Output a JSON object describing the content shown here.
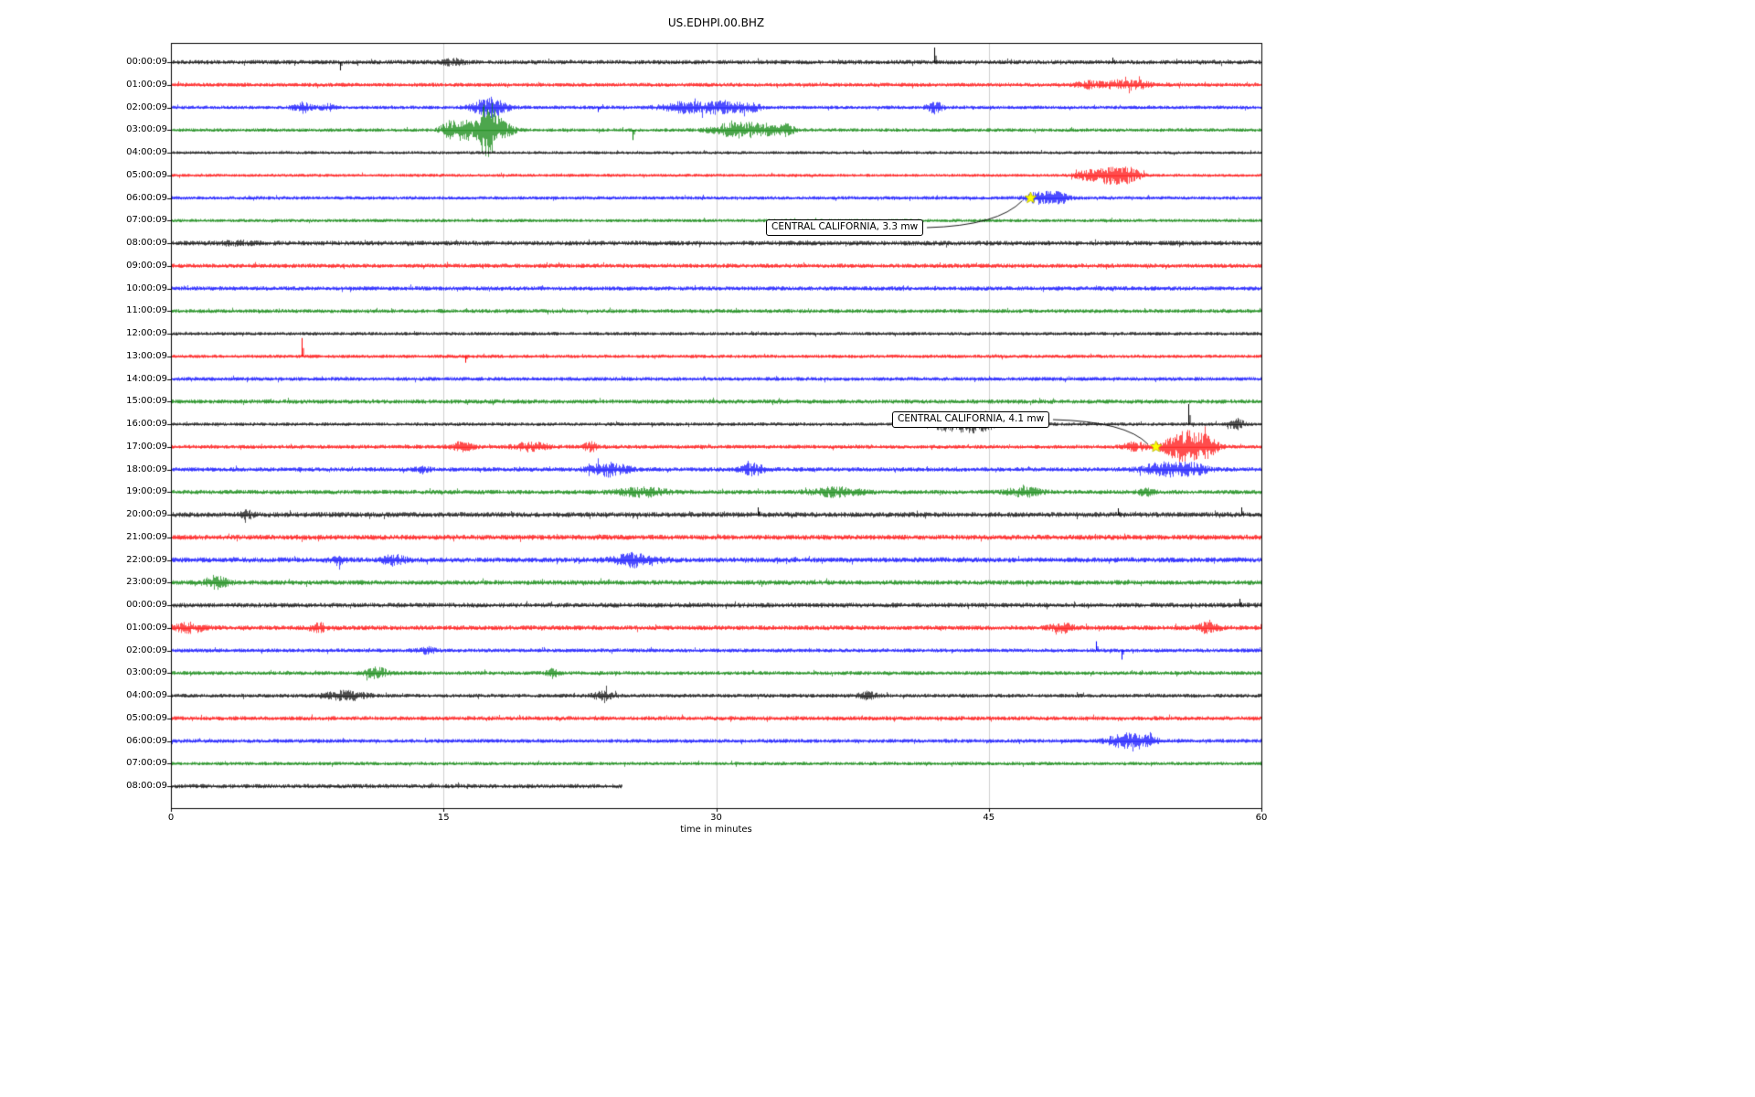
{
  "title": "US.EDHPI.00.BHZ",
  "chart_data": {
    "type": "line",
    "subtype": "seismogram-dayplot",
    "title": "US.EDHPI.00.BHZ",
    "station": "US.EDHPI.00.BHZ",
    "xlabel": "time in minutes",
    "xlim": [
      0,
      60
    ],
    "x_ticks": [
      "0",
      "15",
      "30",
      "45",
      "60"
    ],
    "grid": true,
    "grid_color": "#cfcfcf",
    "color_cycle": [
      "#000000",
      "#ff0000",
      "#0000ff",
      "#008000"
    ],
    "rows": [
      {
        "label": "00:00:09",
        "color": "#000000",
        "base": 2.2,
        "bursts": [
          [
            15.5,
            0.6,
            2.5
          ]
        ],
        "spikes": [
          [
            42.0,
            16
          ],
          [
            9.3,
            -9
          ],
          [
            51.8,
            5
          ]
        ]
      },
      {
        "label": "01:00:09",
        "color": "#ff0000",
        "base": 2.0,
        "bursts": [
          [
            50.5,
            0.7,
            3
          ],
          [
            52.2,
            0.8,
            4
          ],
          [
            53.4,
            0.5,
            3
          ]
        ],
        "spikes": []
      },
      {
        "label": "02:00:09",
        "color": "#0000ff",
        "base": 1.8,
        "bursts": [
          [
            7.2,
            0.5,
            5
          ],
          [
            8.6,
            0.4,
            3
          ],
          [
            17.5,
            0.9,
            9
          ],
          [
            28.4,
            1.4,
            5
          ],
          [
            30.3,
            0.8,
            6
          ],
          [
            31.8,
            0.7,
            4
          ],
          [
            42.0,
            0.4,
            6
          ]
        ],
        "spikes": [
          [
            23.5,
            -5
          ]
        ]
      },
      {
        "label": "03:00:09",
        "color": "#008000",
        "base": 1.8,
        "bursts": [
          [
            15.3,
            0.5,
            7
          ],
          [
            16.2,
            0.7,
            9
          ],
          [
            17.4,
            0.5,
            26
          ],
          [
            18.1,
            0.7,
            8
          ],
          [
            30.9,
            1.2,
            6
          ],
          [
            32.6,
            1.1,
            5
          ],
          [
            33.9,
            0.4,
            4
          ]
        ],
        "spikes": [
          [
            25.4,
            -11
          ]
        ]
      },
      {
        "label": "04:00:09",
        "color": "#000000",
        "base": 1.6,
        "bursts": [],
        "spikes": []
      },
      {
        "label": "05:00:09",
        "color": "#ff0000",
        "base": 1.6,
        "bursts": [
          [
            50.3,
            0.6,
            4
          ],
          [
            51.7,
            0.9,
            8
          ],
          [
            52.8,
            0.6,
            5
          ]
        ],
        "spikes": []
      },
      {
        "label": "06:00:09",
        "color": "#0000ff",
        "base": 1.8,
        "bursts": [
          [
            47.9,
            0.8,
            6
          ],
          [
            48.9,
            0.5,
            4
          ]
        ],
        "spikes": []
      },
      {
        "label": "07:00:09",
        "color": "#008000",
        "base": 1.7,
        "bursts": [],
        "spikes": []
      },
      {
        "label": "08:00:09",
        "color": "#000000",
        "base": 2.4,
        "bursts": [
          [
            3.5,
            1.0,
            1.5
          ]
        ],
        "spikes": []
      },
      {
        "label": "09:00:09",
        "color": "#ff0000",
        "base": 2.2,
        "bursts": [],
        "spikes": []
      },
      {
        "label": "10:00:09",
        "color": "#0000ff",
        "base": 2.2,
        "bursts": [],
        "spikes": []
      },
      {
        "label": "11:00:09",
        "color": "#008000",
        "base": 2.0,
        "bursts": [],
        "spikes": []
      },
      {
        "label": "12:00:09",
        "color": "#000000",
        "base": 1.8,
        "bursts": [],
        "spikes": []
      },
      {
        "label": "13:00:09",
        "color": "#ff0000",
        "base": 1.8,
        "bursts": [],
        "spikes": [
          [
            7.2,
            20
          ],
          [
            16.2,
            -7
          ]
        ]
      },
      {
        "label": "14:00:09",
        "color": "#0000ff",
        "base": 2.0,
        "bursts": [],
        "spikes": []
      },
      {
        "label": "15:00:09",
        "color": "#008000",
        "base": 2.2,
        "bursts": [],
        "spikes": []
      },
      {
        "label": "16:00:09",
        "color": "#000000",
        "base": 1.8,
        "bursts": [
          [
            42.3,
            0.5,
            5
          ],
          [
            43.6,
            1.2,
            7
          ],
          [
            44.7,
            0.6,
            5
          ],
          [
            58.6,
            0.4,
            5
          ]
        ],
        "spikes": [
          [
            56.0,
            22
          ]
        ]
      },
      {
        "label": "17:00:09",
        "color": "#ff0000",
        "base": 2.0,
        "bursts": [
          [
            16.0,
            0.6,
            4
          ],
          [
            19.8,
            0.9,
            4
          ],
          [
            23.1,
            0.4,
            4
          ],
          [
            53.0,
            0.6,
            4
          ],
          [
            55.8,
            1.1,
            15
          ],
          [
            57.0,
            0.6,
            6
          ]
        ],
        "spikes": []
      },
      {
        "label": "18:00:09",
        "color": "#0000ff",
        "base": 2.2,
        "bursts": [
          [
            13.8,
            0.4,
            3
          ],
          [
            24.1,
            1.0,
            6
          ],
          [
            32.0,
            0.7,
            5
          ],
          [
            54.6,
            1.2,
            6
          ],
          [
            56.2,
            0.8,
            5
          ]
        ],
        "spikes": []
      },
      {
        "label": "19:00:09",
        "color": "#008000",
        "base": 2.2,
        "bursts": [
          [
            25.9,
            1.3,
            4
          ],
          [
            36.6,
            1.3,
            4
          ],
          [
            46.9,
            0.9,
            4
          ],
          [
            53.6,
            0.4,
            3
          ]
        ],
        "spikes": []
      },
      {
        "label": "20:00:09",
        "color": "#000000",
        "base": 2.6,
        "bursts": [
          [
            4.2,
            0.4,
            3
          ]
        ],
        "spikes": [
          [
            32.3,
            8
          ],
          [
            52.1,
            7
          ],
          [
            58.9,
            8
          ]
        ]
      },
      {
        "label": "21:00:09",
        "color": "#ff0000",
        "base": 2.6,
        "bursts": [],
        "spikes": []
      },
      {
        "label": "22:00:09",
        "color": "#0000ff",
        "base": 2.6,
        "bursts": [
          [
            9.2,
            0.4,
            4
          ],
          [
            12.2,
            0.6,
            5
          ],
          [
            25.6,
            1.2,
            6
          ]
        ],
        "spikes": []
      },
      {
        "label": "23:00:09",
        "color": "#008000",
        "base": 2.4,
        "bursts": [
          [
            2.5,
            0.6,
            6
          ]
        ],
        "spikes": []
      },
      {
        "label": "00:00:09",
        "color": "#000000",
        "base": 2.4,
        "bursts": [],
        "spikes": [
          [
            58.8,
            7
          ]
        ]
      },
      {
        "label": "01:00:09",
        "color": "#ff0000",
        "base": 2.4,
        "bursts": [
          [
            1.0,
            0.8,
            4
          ],
          [
            8.1,
            0.4,
            4
          ],
          [
            49.0,
            0.6,
            4
          ],
          [
            57.0,
            0.6,
            4
          ]
        ],
        "spikes": []
      },
      {
        "label": "02:00:09",
        "color": "#0000ff",
        "base": 2.0,
        "bursts": [
          [
            14.0,
            0.5,
            3
          ]
        ],
        "spikes": [
          [
            50.9,
            10
          ],
          [
            52.3,
            -10
          ]
        ]
      },
      {
        "label": "03:00:09",
        "color": "#008000",
        "base": 2.0,
        "bursts": [
          [
            11.3,
            0.6,
            5
          ],
          [
            21.0,
            0.3,
            4
          ]
        ],
        "spikes": []
      },
      {
        "label": "04:00:09",
        "color": "#000000",
        "base": 2.0,
        "bursts": [
          [
            9.6,
            1.2,
            4
          ],
          [
            23.8,
            0.6,
            4
          ],
          [
            38.3,
            0.5,
            3
          ]
        ],
        "spikes": []
      },
      {
        "label": "05:00:09",
        "color": "#ff0000",
        "base": 2.2,
        "bursts": [],
        "spikes": []
      },
      {
        "label": "06:00:09",
        "color": "#0000ff",
        "base": 2.0,
        "bursts": [
          [
            52.4,
            0.9,
            6
          ],
          [
            53.5,
            0.7,
            5
          ]
        ],
        "spikes": []
      },
      {
        "label": "07:00:09",
        "color": "#008000",
        "base": 1.8,
        "bursts": [],
        "spikes": []
      },
      {
        "label": "08:00:09",
        "color": "#000000",
        "base": 2.2,
        "dur": 24.8,
        "bursts": [],
        "spikes": []
      }
    ],
    "events": [
      {
        "text": "CENTRAL CALIFORNIA, 3.3 mw",
        "row": 6,
        "minute": 47.3,
        "marker": "star",
        "marker_color": "#ffff00"
      },
      {
        "text": "CENTRAL CALIFORNIA, 4.1 mw",
        "row": 17,
        "minute": 54.2,
        "marker": "star",
        "marker_color": "#ffff00"
      }
    ]
  }
}
